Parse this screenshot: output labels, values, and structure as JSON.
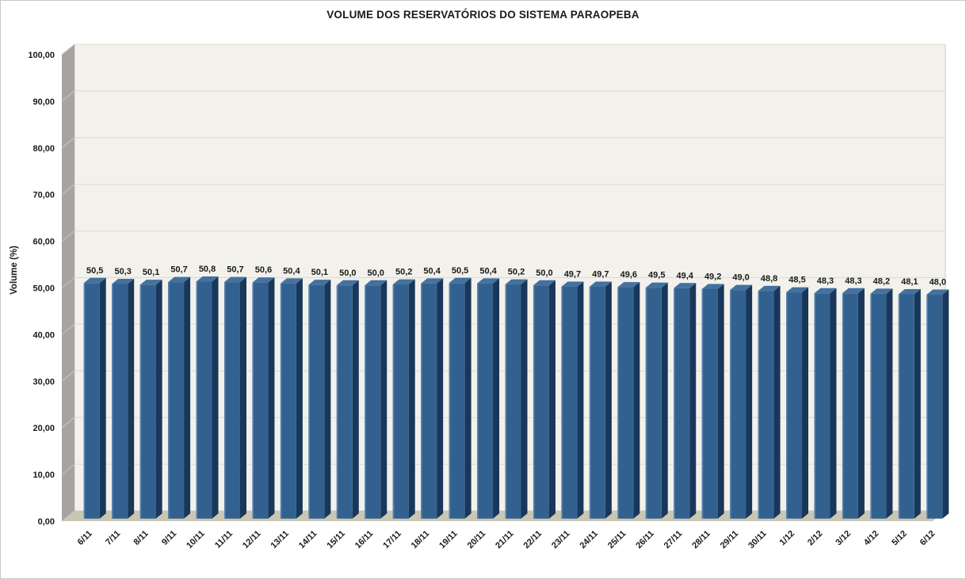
{
  "chart_data": {
    "type": "bar",
    "style": "3d-column",
    "title": "VOLUME DOS RESERVATÓRIOS DO SISTEMA PARAOPEBA",
    "xlabel": "",
    "ylabel": "Volume (%)",
    "ylim": [
      0,
      100
    ],
    "y_tick_step": 10,
    "y_ticks": [
      "0,00",
      "10,00",
      "20,00",
      "30,00",
      "40,00",
      "50,00",
      "60,00",
      "70,00",
      "80,00",
      "90,00",
      "100,00"
    ],
    "grid": "horizontal",
    "legend": "none",
    "decimal_separator": ",",
    "categories": [
      "6/11",
      "7/11",
      "8/11",
      "9/11",
      "10/11",
      "11/11",
      "12/11",
      "13/11",
      "14/11",
      "15/11",
      "16/11",
      "17/11",
      "18/11",
      "19/11",
      "20/11",
      "21/11",
      "22/11",
      "23/11",
      "24/11",
      "25/11",
      "26/11",
      "27/11",
      "28/11",
      "29/11",
      "30/11",
      "1/12",
      "2/12",
      "3/12",
      "4/12",
      "5/12",
      "6/12"
    ],
    "values": [
      50.5,
      50.3,
      50.1,
      50.7,
      50.8,
      50.7,
      50.6,
      50.4,
      50.1,
      50.0,
      50.0,
      50.2,
      50.4,
      50.5,
      50.4,
      50.2,
      50.0,
      49.7,
      49.7,
      49.6,
      49.5,
      49.4,
      49.2,
      49.0,
      48.8,
      48.5,
      48.3,
      48.3,
      48.2,
      48.1,
      48.0
    ],
    "value_labels": [
      "50,5",
      "50,3",
      "50,1",
      "50,7",
      "50,8",
      "50,7",
      "50,6",
      "50,4",
      "50,1",
      "50,0",
      "50,0",
      "50,2",
      "50,4",
      "50,5",
      "50,4",
      "50,2",
      "50,0",
      "49,7",
      "49,7",
      "49,6",
      "49,5",
      "49,4",
      "49,2",
      "49,0",
      "48,8",
      "48,5",
      "48,3",
      "48,3",
      "48,2",
      "48,1",
      "48,0"
    ],
    "colors": {
      "bar_front": "#33618F",
      "bar_side": "#18375A",
      "bar_top": "#44719F",
      "bar_highlight": "#5E88B3",
      "wall_back": "#F2F1EB",
      "wall_edge": "#CFCDC5",
      "wall_side": "#A5A4A0",
      "wall_side_line": "#C7C6C2",
      "floor": "#C9C7B4",
      "gridline": "#DCDAD2",
      "text": "#1A1A1A"
    }
  }
}
